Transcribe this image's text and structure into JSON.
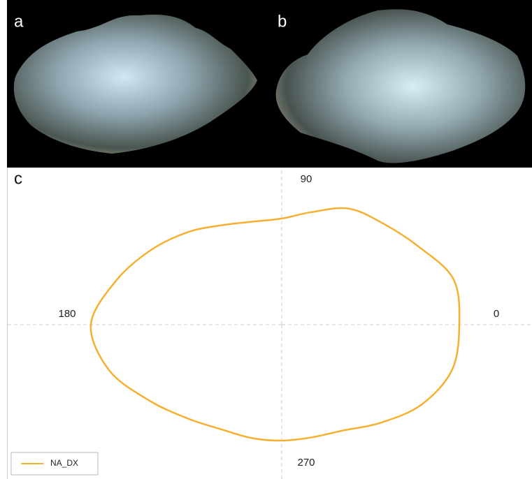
{
  "panel_labels": [
    "a",
    "b",
    "c"
  ],
  "chart_data": {
    "type": "polar",
    "x": [
      0,
      15,
      30,
      45,
      60,
      75,
      90,
      105,
      120,
      135,
      150,
      165,
      180,
      195,
      210,
      225,
      240,
      255,
      270,
      285,
      300,
      315,
      330,
      345
    ],
    "series": [
      {
        "name": "NA_DX",
        "color": "#f5b031",
        "values": [
          254,
          254,
          225,
          205,
          192,
          167,
          152,
          153,
          165,
          188,
          215,
          245,
          273,
          255,
          218,
          190,
          173,
          168,
          166,
          167,
          175,
          199,
          230,
          252
        ]
      }
    ],
    "xticks": [
      0,
      90,
      180,
      270
    ],
    "ylim": [
      0,
      300
    ],
    "grid": true,
    "legend": "lower left"
  }
}
